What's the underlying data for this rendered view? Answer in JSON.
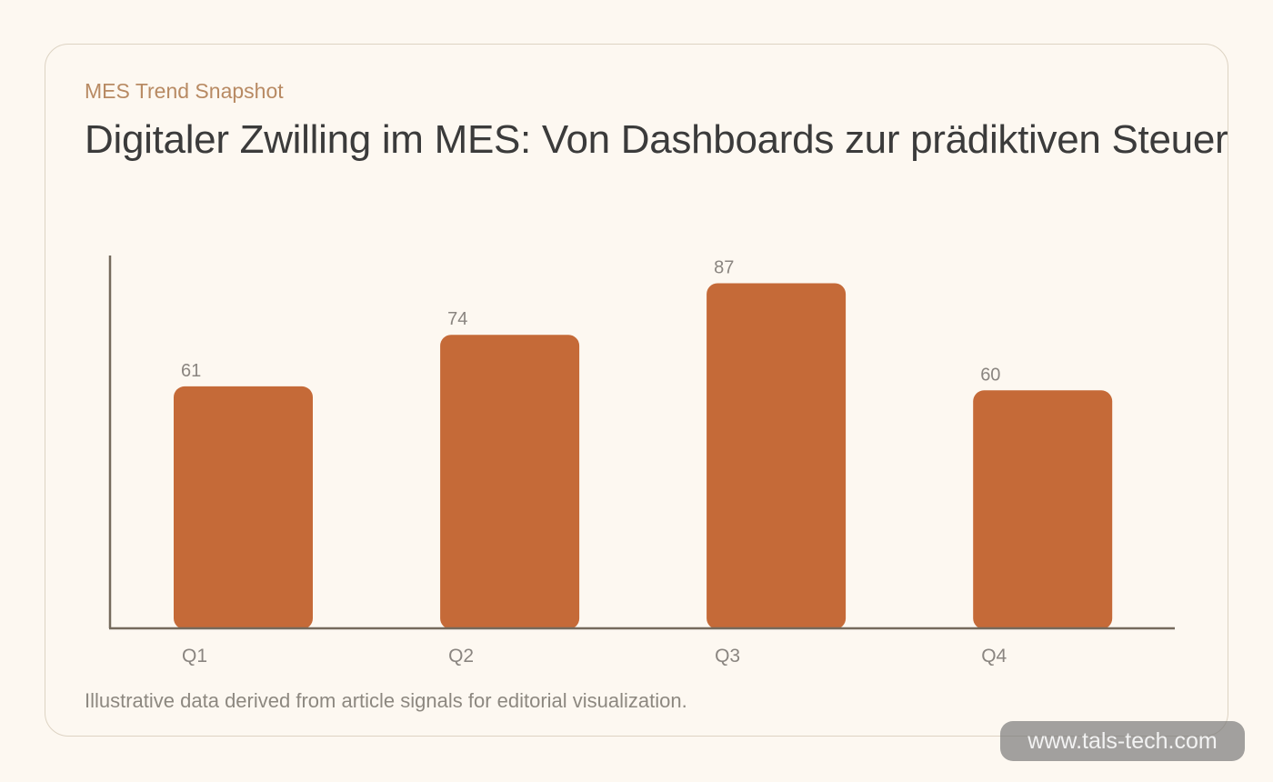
{
  "header": {
    "kicker": "MES Trend Snapshot",
    "title": "Digitaler Zwilling im MES: Von Dashboards zur prädiktiven Steuerung"
  },
  "footer": {
    "caption": "Illustrative data derived from article signals for editorial visualization."
  },
  "watermark": {
    "text": "www.tals-tech.com"
  },
  "colors": {
    "bar": "#c56a38",
    "axis": "#756a5c",
    "label": "#8a8580",
    "background": "#fdf8f1"
  },
  "chart_data": {
    "type": "bar",
    "categories": [
      "Q1",
      "Q2",
      "Q3",
      "Q4"
    ],
    "values": [
      61,
      74,
      87,
      60
    ],
    "title": "Digitaler Zwilling im MES: Von Dashboards zur prädiktiven Steuerung",
    "xlabel": "",
    "ylabel": "",
    "ylim": [
      0,
      94
    ],
    "grid": false,
    "legend": "none",
    "data_labels": true
  }
}
